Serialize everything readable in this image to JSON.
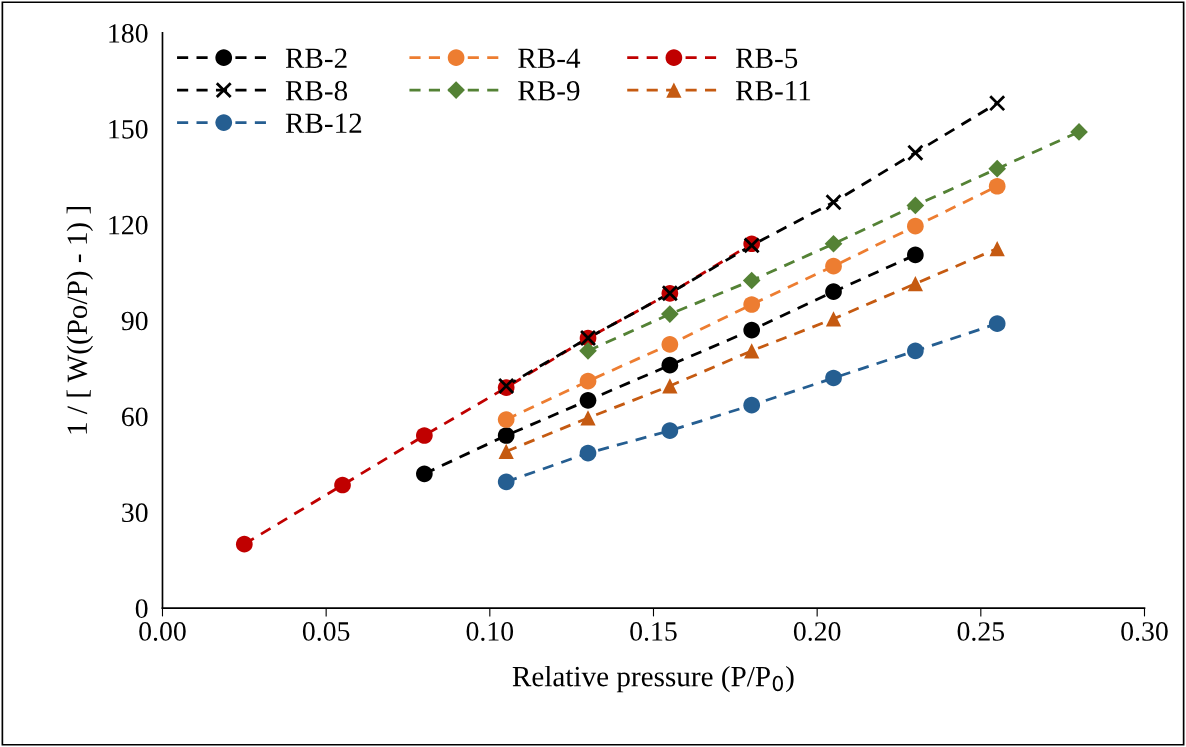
{
  "chart_data": {
    "type": "line",
    "xlabel": "Relative pressure (P/P$_{0}$)",
    "ylabel": "1 / [ W((Po/P) - 1) ]",
    "xlim": [
      0,
      0.3
    ],
    "xticks": [
      {
        "value": 0,
        "label": "0.00"
      },
      {
        "value": 0.05,
        "label": "0.05"
      },
      {
        "value": 0.1,
        "label": "0.10"
      },
      {
        "value": 0.15,
        "label": "0.15"
      },
      {
        "value": 0.2,
        "label": "0.20"
      },
      {
        "value": 0.25,
        "label": "0.25"
      },
      {
        "value": 0.3,
        "label": "0.30"
      }
    ],
    "ylim": [
      0,
      180
    ],
    "yticks": [
      0,
      30,
      60,
      90,
      120,
      150,
      180
    ],
    "grid": false,
    "legend": "top left",
    "line_style": "dashed",
    "series": [
      {
        "name": "RB-2",
        "color": "#000000",
        "marker": "circle",
        "x": [
          0.08,
          0.105,
          0.13,
          0.155,
          0.18,
          0.205,
          0.23
        ],
        "values": [
          42,
          54,
          65,
          76,
          87,
          99,
          110.5
        ]
      },
      {
        "name": "RB-4",
        "color": "#ed7d31",
        "marker": "circle",
        "x": [
          0.105,
          0.13,
          0.155,
          0.18,
          0.205,
          0.23,
          0.255
        ],
        "values": [
          59,
          71,
          82.5,
          95,
          107,
          119.5,
          132
        ]
      },
      {
        "name": "RB-5",
        "color": "#c00000",
        "marker": "circle",
        "x": [
          0.025,
          0.055,
          0.08,
          0.105,
          0.13,
          0.155,
          0.18
        ],
        "values": [
          20,
          38.5,
          54,
          69,
          84.5,
          98.5,
          114
        ]
      },
      {
        "name": "RB-8",
        "color": "#000000",
        "marker": "cross",
        "x": [
          0.105,
          0.13,
          0.155,
          0.18,
          0.205,
          0.23,
          0.255
        ],
        "values": [
          69.5,
          84.5,
          98.5,
          113.5,
          127,
          142.5,
          158
        ]
      },
      {
        "name": "RB-9",
        "color": "#548235",
        "marker": "diamond",
        "x": [
          0.13,
          0.155,
          0.18,
          0.205,
          0.23,
          0.255,
          0.28
        ],
        "values": [
          80.5,
          92,
          102.5,
          114,
          126,
          137.5,
          149
        ]
      },
      {
        "name": "RB-11",
        "color": "#c55a11",
        "marker": "triangle",
        "x": [
          0.105,
          0.13,
          0.155,
          0.18,
          0.205,
          0.23,
          0.255
        ],
        "values": [
          49,
          59.5,
          69.5,
          80.5,
          90.5,
          101.5,
          112.5
        ]
      },
      {
        "name": "RB-12",
        "color": "#255e91",
        "marker": "circle",
        "x": [
          0.105,
          0.13,
          0.155,
          0.18,
          0.205,
          0.23,
          0.255
        ],
        "values": [
          39.5,
          48.5,
          55.5,
          63.5,
          72,
          80.5,
          89
        ]
      }
    ]
  }
}
